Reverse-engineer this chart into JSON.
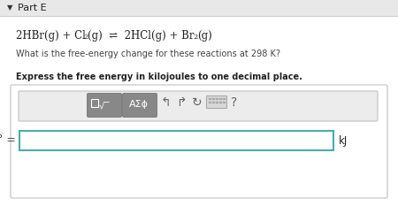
{
  "background_color": "#efefef",
  "panel_bg": "#ffffff",
  "title": "Part E",
  "question": "What is the free-energy change for these reactions at 298 K?",
  "instruction": "Express the free energy in kilojoules to one decimal place.",
  "delta_g_label": "ΔG° =",
  "unit": "kJ",
  "input_border_color": "#4aacac",
  "toolbar_bg": "#ececec",
  "btn_color": "#888888",
  "btn_text_color": "#ffffff",
  "icon_color": "#666666",
  "text_color_dark": "#222222",
  "text_color_mid": "#444444",
  "sep_color": "#cccccc",
  "outer_border_color": "#cccccc",
  "rxn_part1": "2HBr(g) + Cl",
  "rxn_sub1": "2",
  "rxn_part2": "(g)  ⇌  2HCl(g) + Br",
  "rxn_sub2": "2",
  "rxn_part3": "(g)"
}
